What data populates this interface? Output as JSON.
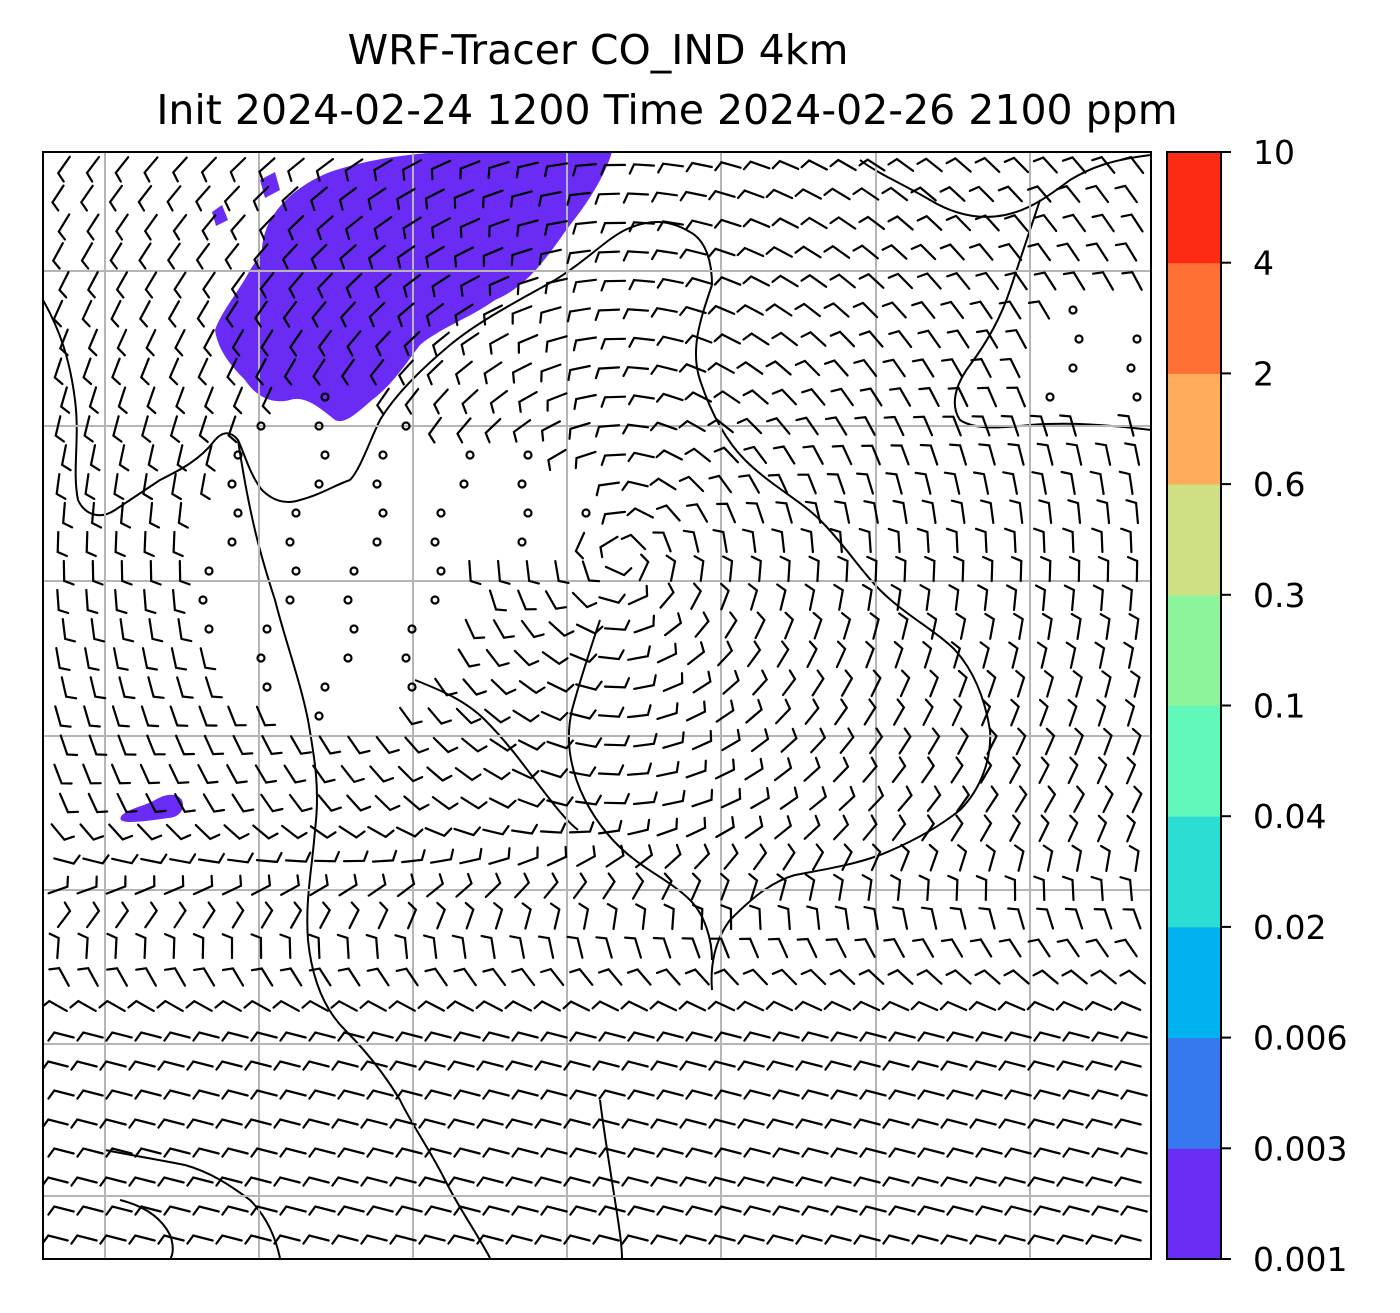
{
  "title": {
    "line1": "WRF-Tracer CO_IND 4km",
    "line2": "Init 2024-02-24 1200 Time 2024-02-26 2100 ppm"
  },
  "colorbar": {
    "ticks": [
      "0.001",
      "0.003",
      "0.006",
      "0.02",
      "0.04",
      "0.1",
      "0.3",
      "0.6",
      "2",
      "4",
      "10"
    ],
    "colors": [
      "#6a2cf5",
      "#3679ef",
      "#00b3ef",
      "#2bddd2",
      "#62f8b9",
      "#8ef49c",
      "#cfe084",
      "#ffad5c",
      "#ff6f36",
      "#ff2a13"
    ]
  },
  "map": {
    "content": "wind barbs over coastlines with CO_IND tracer shading",
    "tracer_color": "#6a2cf5",
    "grid_color": "#b5b5b5"
  }
}
